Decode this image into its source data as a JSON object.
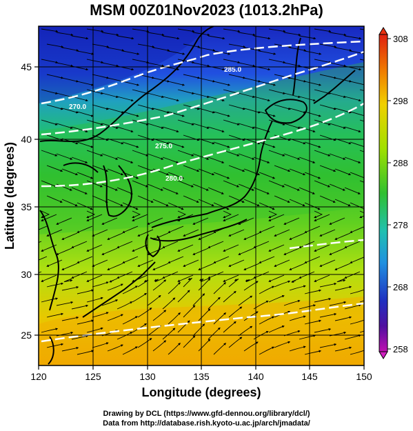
{
  "title": "MSM 00Z01Nov2023 (1013.2hPa)",
  "xlabel": "Longitude (degrees)",
  "ylabel": "Latitude  (degrees)",
  "x_ticks": [
    "120",
    "125",
    "130",
    "135",
    "140",
    "145",
    "150"
  ],
  "y_ticks": [
    "25",
    "30",
    "35",
    "40",
    "45"
  ],
  "colorbar_ticks": [
    "308",
    "298",
    "288",
    "278",
    "268",
    "258"
  ],
  "contour_labels": [
    "270.0",
    "275.0",
    "280.0",
    "285.0"
  ],
  "credit_line1": "Drawing by DCL (https://www.gfd-dennou.org/library/dcl/)",
  "credit_line2": "Data from http://database.rish.kyoto-u.ac.jp/arch/jmadata/",
  "colors": {
    "cold": "#1830c8",
    "cool": "#20c8a0",
    "mild": "#30c040",
    "warm": "#c8e010",
    "hot": "#f0b000",
    "colorbar_top": "#e83010",
    "colorbar_bottom": "#d020c0",
    "land_outline": "#000000",
    "contour": "#ffffff"
  },
  "map": {
    "lon_range": [
      120,
      150
    ],
    "lat_range": [
      22.5,
      47.6
    ],
    "field": "temperature (K)",
    "overlay": "wind streamlines"
  }
}
